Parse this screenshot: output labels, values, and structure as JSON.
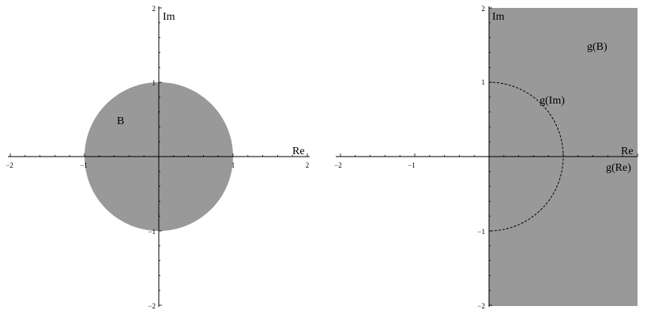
{
  "colors": {
    "region_fill": "#999999",
    "axis": "#000000",
    "background": "#ffffff"
  },
  "left_panel": {
    "axis_labels": {
      "real": "Re",
      "imag": "Im"
    },
    "region_label": "B",
    "tick_labels_x": [
      "−2",
      "−1",
      "1",
      "2"
    ],
    "tick_labels_y": [
      "2",
      "1",
      "−1",
      "−2"
    ],
    "shape": "unit-disk",
    "range": [
      -2,
      2
    ]
  },
  "right_panel": {
    "axis_labels": {
      "real": "Re",
      "imag": "Im"
    },
    "region_label": "g(B)",
    "curve_label": "g(Im)",
    "axis_image_label": "g(Re)",
    "tick_labels_x": [
      "−2",
      "−1"
    ],
    "tick_labels_y": [
      "2",
      "1",
      "−1",
      "−2"
    ],
    "shape": "right-half-plane",
    "curve": "dashed-semicircle-radius-1",
    "range": [
      -2,
      2
    ]
  }
}
